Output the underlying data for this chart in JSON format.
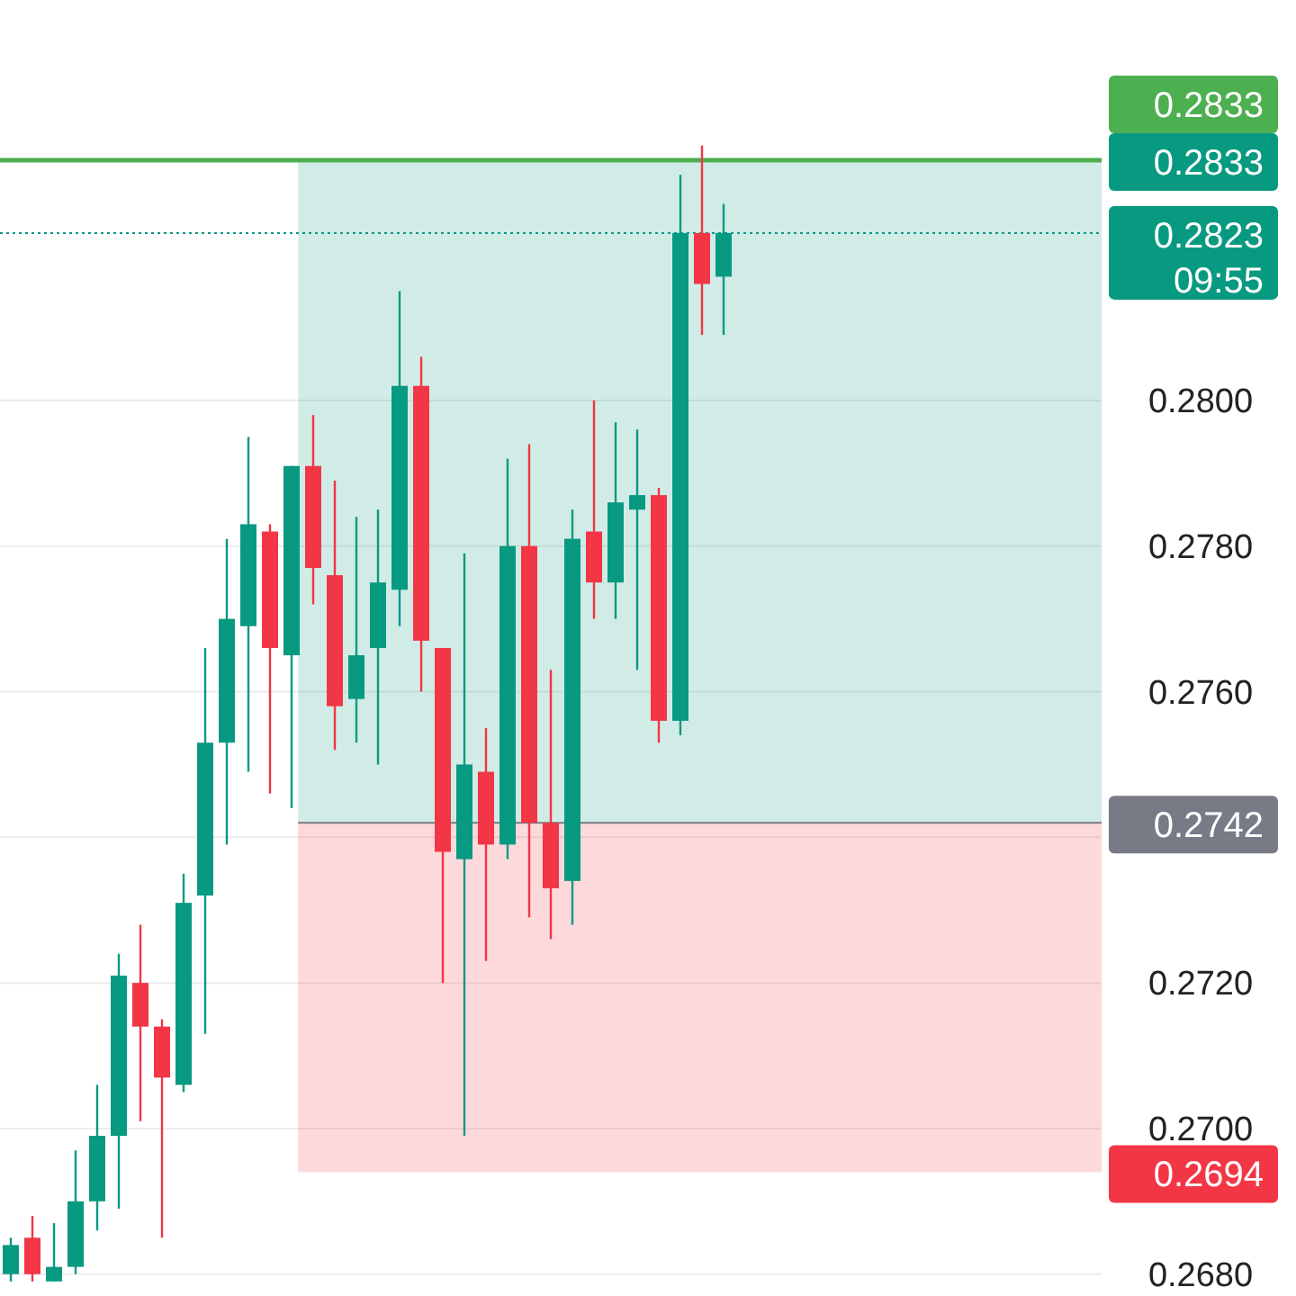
{
  "chart_data": {
    "type": "candlestick",
    "categories": [
      null,
      null,
      null,
      null,
      null,
      null,
      null,
      null,
      null,
      null,
      null,
      null,
      null,
      null,
      null,
      null,
      null,
      null,
      null,
      null,
      null,
      null,
      null,
      null,
      null,
      null,
      null,
      null,
      null,
      null,
      null,
      null,
      null,
      null,
      null,
      null,
      null,
      null,
      null,
      null,
      null,
      null,
      null,
      null,
      null,
      null,
      null,
      null,
      null,
      null,
      null
    ],
    "ohlc": [
      [
        0.268,
        0.2685,
        0.2679,
        0.2684
      ],
      [
        0.2685,
        0.2688,
        0.2679,
        0.268
      ],
      [
        0.2679,
        0.2687,
        0.2679,
        0.2681
      ],
      [
        0.2681,
        0.2697,
        0.268,
        0.269
      ],
      [
        0.269,
        0.2706,
        0.2686,
        0.2699
      ],
      [
        0.2699,
        0.2724,
        0.2689,
        0.2721
      ],
      [
        0.272,
        0.2728,
        0.2701,
        0.2714
      ],
      [
        0.2714,
        0.2715,
        0.2685,
        0.2707
      ],
      [
        0.2706,
        0.2735,
        0.2705,
        0.2731
      ],
      [
        0.2732,
        0.2766,
        0.2713,
        0.2753
      ],
      [
        0.2753,
        0.2781,
        0.2739,
        0.277
      ],
      [
        0.2769,
        0.2795,
        0.2749,
        0.2783
      ],
      [
        0.2782,
        0.2783,
        0.2746,
        0.2766
      ],
      [
        0.2765,
        0.2791,
        0.2744,
        0.2791
      ],
      [
        0.2791,
        0.2798,
        0.2772,
        0.2777
      ],
      [
        0.2776,
        0.2789,
        0.2752,
        0.2758
      ],
      [
        0.2759,
        0.2784,
        0.2753,
        0.2765
      ],
      [
        0.2766,
        0.2785,
        0.275,
        0.2775
      ],
      [
        0.2774,
        0.2815,
        0.2769,
        0.2802
      ],
      [
        0.2802,
        0.2806,
        0.276,
        0.2767
      ],
      [
        0.2766,
        0.2766,
        0.272,
        0.2738
      ],
      [
        0.2737,
        0.2779,
        0.2699,
        0.275
      ],
      [
        0.2749,
        0.2755,
        0.2723,
        0.2739
      ],
      [
        0.2739,
        0.2792,
        0.2737,
        0.278
      ],
      [
        0.278,
        0.2794,
        0.2729,
        0.2742
      ],
      [
        0.2742,
        0.2763,
        0.2726,
        0.2733
      ],
      [
        0.2734,
        0.2785,
        0.2728,
        0.2781
      ],
      [
        0.2782,
        0.28,
        0.277,
        0.2775
      ],
      [
        0.2775,
        0.2797,
        0.277,
        0.2786
      ],
      [
        0.2785,
        0.2796,
        0.2763,
        0.2787
      ],
      [
        0.2787,
        0.2788,
        0.2753,
        0.2756
      ],
      [
        0.2756,
        0.2831,
        0.2754,
        0.2823
      ],
      [
        0.2823,
        0.2835,
        0.2809,
        0.2816
      ],
      [
        0.2817,
        0.2827,
        0.2809,
        0.2823
      ],
      null,
      null,
      null,
      null,
      null,
      null,
      null,
      null,
      null,
      null,
      null,
      null,
      null,
      null,
      null,
      null,
      null
    ],
    "ylim": [
      0.2677,
      0.2855
    ],
    "yticks": [
      {
        "value": 0.268,
        "label": "0.2680"
      },
      {
        "value": 0.27,
        "label": "0.2700"
      },
      {
        "value": 0.272,
        "label": "0.2720"
      },
      {
        "value": 0.274,
        "label": null
      },
      {
        "value": 0.276,
        "label": "0.2760"
      },
      {
        "value": 0.278,
        "label": "0.2780"
      },
      {
        "value": 0.28,
        "label": "0.2800"
      }
    ],
    "grid": "y",
    "bands": [
      {
        "axis": "y",
        "from": 0.2742,
        "to": 0.2833,
        "label": "0.2833",
        "color": "#089981"
      },
      {
        "axis": "y",
        "from": 0.2694,
        "to": 0.2742,
        "label": "0.2694",
        "color": "#f23645"
      }
    ],
    "ref_lines": [
      {
        "axis": "y",
        "value": 0.2833,
        "label": "0.2833",
        "color": "#4caf50",
        "line_style": "solid"
      },
      {
        "axis": "y",
        "value": 0.2823,
        "label": "0.2823",
        "color": "#089981",
        "line_style": "dotted"
      },
      {
        "axis": "y",
        "value": 0.2742,
        "label": "0.2742",
        "color": "#787b86",
        "line_style": "solid"
      }
    ],
    "annotations": [
      "09:55"
    ]
  }
}
